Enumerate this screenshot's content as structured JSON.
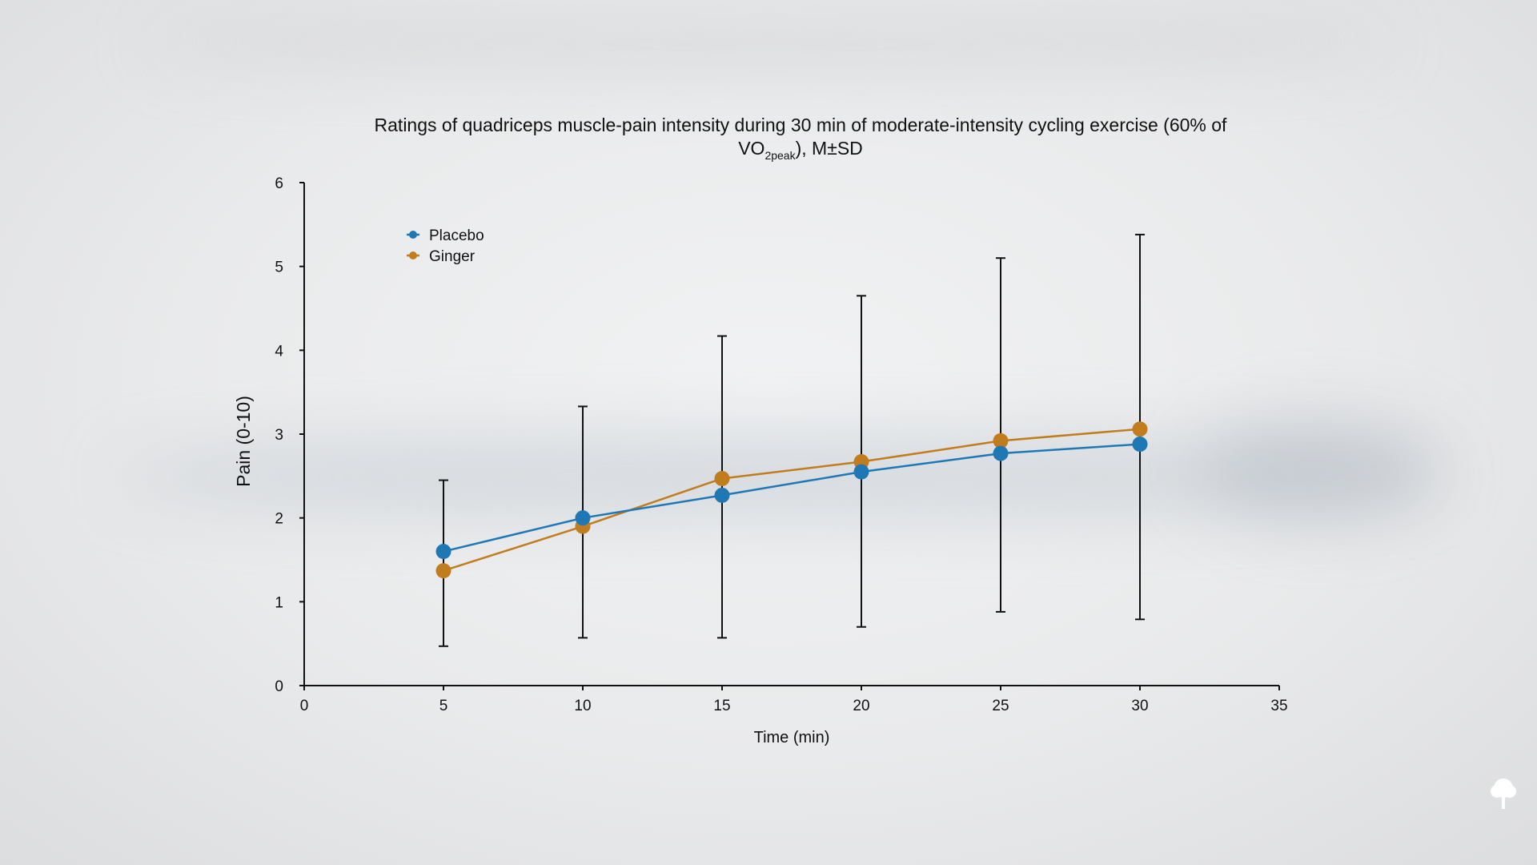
{
  "chart_data": {
    "type": "line",
    "title": "Ratings of quadriceps muscle-pain intensity during 30 min of moderate-intensity cycling exercise (60% of",
    "title_line2_main": "VO",
    "title_line2_sub": "2peak",
    "title_line2_tail": "),  M±SD",
    "xlabel": "Time (min)",
    "ylabel": "Pain (0-10)",
    "xlim": [
      0,
      35
    ],
    "ylim": [
      0,
      6
    ],
    "x_ticks": [
      "0",
      "5",
      "10",
      "15",
      "20",
      "25",
      "30",
      "35"
    ],
    "y_ticks": [
      "0",
      "1",
      "2",
      "3",
      "4",
      "5",
      "6"
    ],
    "x": [
      5,
      10,
      15,
      20,
      25,
      30
    ],
    "series": [
      {
        "name": "Placebo",
        "color": "#1f77b4",
        "values": [
          1.6,
          2.0,
          2.27,
          2.55,
          2.77,
          2.88
        ]
      },
      {
        "name": "Ginger",
        "color": "#c17c1e",
        "values": [
          1.37,
          1.9,
          2.47,
          2.67,
          2.92,
          3.06
        ]
      }
    ],
    "error_bars": [
      {
        "low": 0.47,
        "high": 2.45
      },
      {
        "low": 0.57,
        "high": 3.33
      },
      {
        "low": 0.57,
        "high": 4.17
      },
      {
        "low": 0.7,
        "high": 4.65
      },
      {
        "low": 0.88,
        "high": 5.1
      },
      {
        "low": 0.79,
        "high": 5.38
      }
    ],
    "legend_position": "top-left",
    "grid": false
  },
  "icons": {
    "corner": "tree-icon"
  }
}
